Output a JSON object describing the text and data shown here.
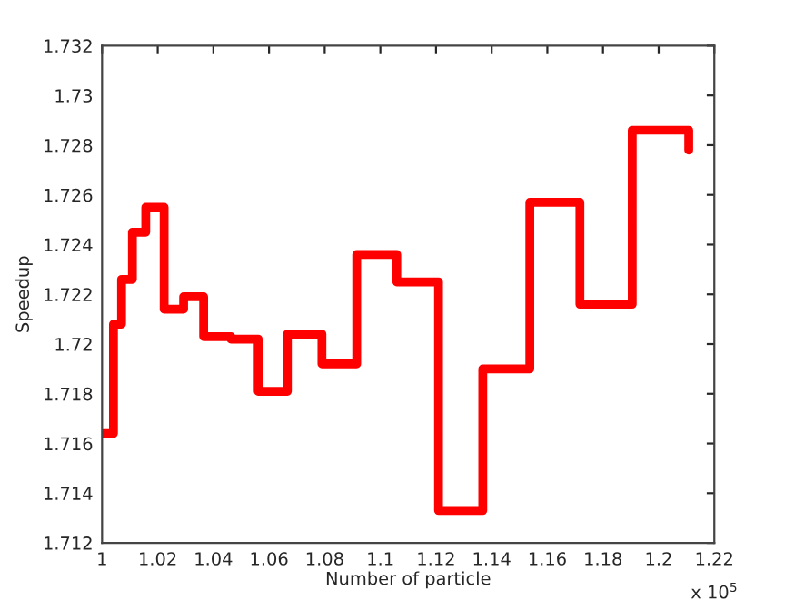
{
  "chart_data": {
    "type": "step",
    "xlabel": "Number of particle",
    "ylabel": "Speedup",
    "annotations": [
      "x 10$^{5}$"
    ],
    "x": [
      1.0005,
      1.0041,
      1.007,
      1.0109,
      1.0157,
      1.0223,
      1.0293,
      1.0365,
      1.0463,
      1.0561,
      1.0666,
      1.079,
      1.0915,
      1.1059,
      1.1209,
      1.1368,
      1.1537,
      1.1717,
      1.1905,
      1.2108
    ],
    "series": [
      {
        "color": "#ff0000",
        "values": [
          1.7164,
          1.7208,
          1.7226,
          1.7245,
          1.7255,
          1.7214,
          1.7219,
          1.7203,
          1.7202,
          1.7181,
          1.7204,
          1.7192,
          1.7236,
          1.7225,
          1.7133,
          1.719,
          1.7257,
          1.7216,
          1.7286,
          1.7278
        ]
      }
    ],
    "xlim": [
      1,
      1.22
    ],
    "xticks": [
      1,
      1.02,
      1.04,
      1.06,
      1.08,
      1.1,
      1.12,
      1.14,
      1.16,
      1.18,
      1.2,
      1.22
    ],
    "ylim": [
      1.712,
      1.732
    ],
    "yticks": [
      1.712,
      1.714,
      1.716,
      1.718,
      1.72,
      1.722,
      1.724,
      1.726,
      1.728,
      1.73,
      1.732
    ],
    "grid": false,
    "legend": false
  }
}
